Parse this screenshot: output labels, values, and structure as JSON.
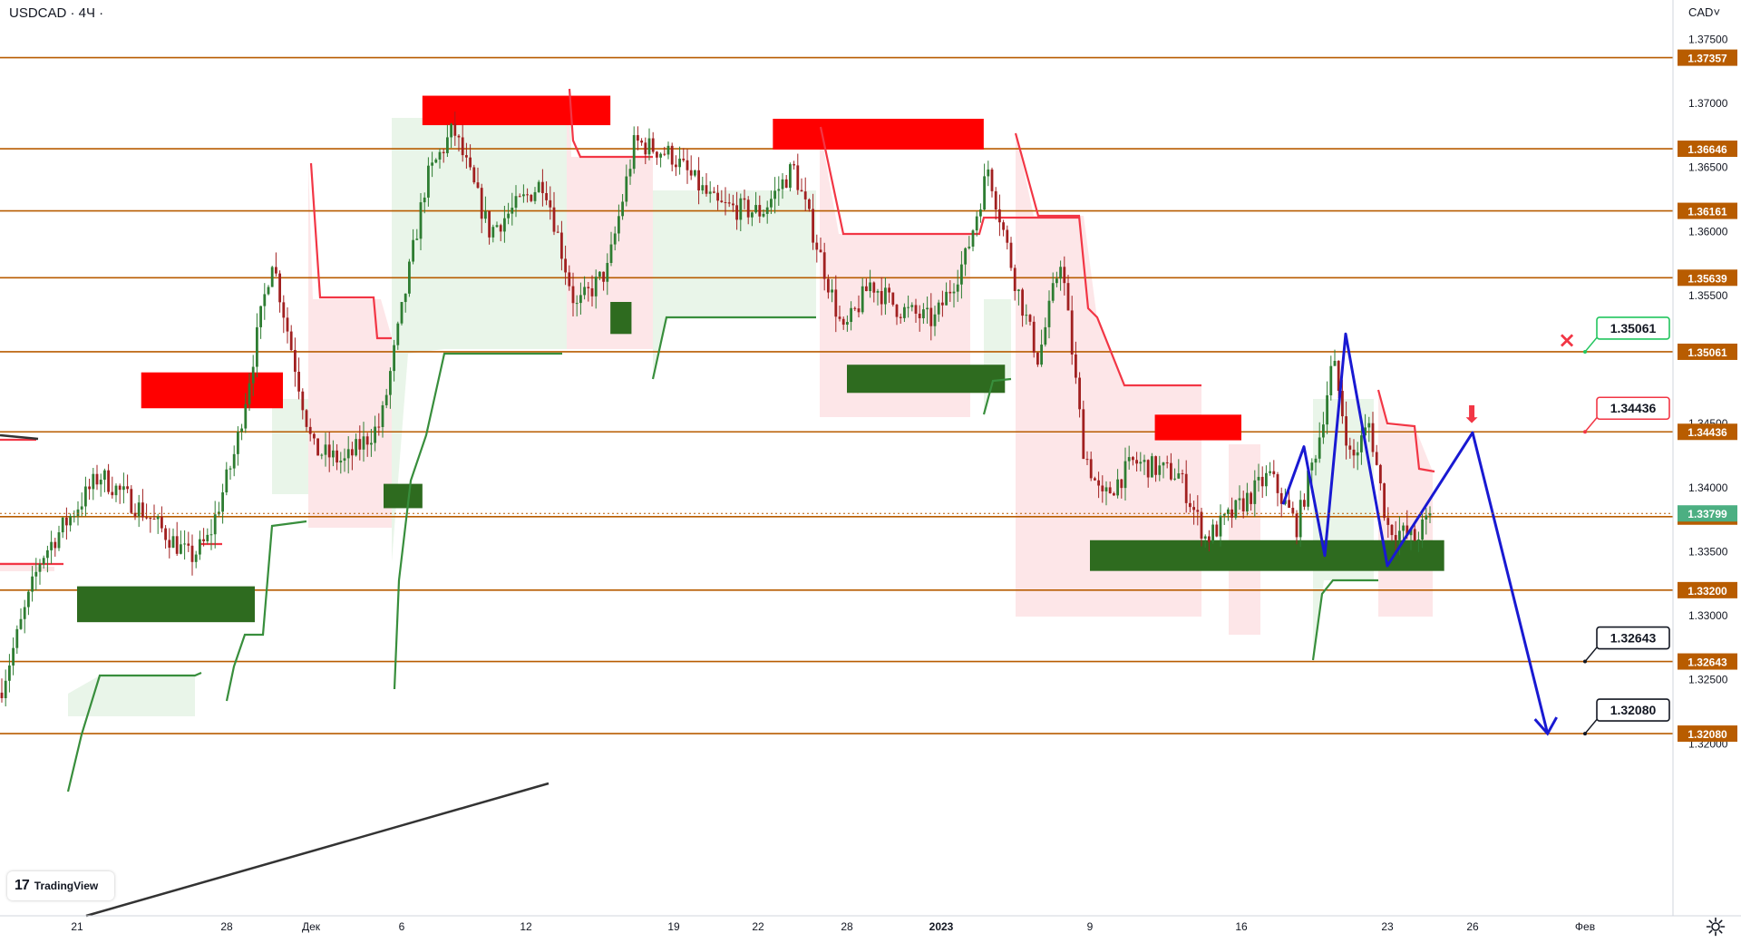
{
  "symbol": {
    "pair": "USDCAD",
    "interval": "4Ч",
    "title": "USDCAD · 4Ч ·"
  },
  "currency_dropdown": "CAD",
  "logo": {
    "mark": "17",
    "text": "TradingView"
  },
  "colors": {
    "level_line": "#b85c00",
    "level_label_bg": "#b85c00",
    "current_label_bg": "#4caf82",
    "resistance_zone": "#ff0000",
    "support_zone": "#2e6b1f",
    "trail_red": "#f23645",
    "trail_green": "#388e3c",
    "fill_red": "rgba(242,54,69,0.12)",
    "fill_green": "rgba(56,142,60,0.10)",
    "candle_up": "#2e7d32",
    "candle_down": "#a12020",
    "projection": "#1919d2",
    "trendline": "#333333",
    "callout_stop": "#22c55e",
    "callout_entry": "#f23645",
    "callout_target": "#131722"
  },
  "chart_data": {
    "type": "candlestick",
    "symbol": "USDCAD",
    "timeframe": "4Ч",
    "ylim": [
      1.3195,
      1.3765
    ],
    "price_ticks": [
      "1.37500",
      "1.37000",
      "1.36500",
      "1.36000",
      "1.35500",
      "1.34500",
      "1.34000",
      "1.33500",
      "1.33000",
      "1.32500",
      "1.32000"
    ],
    "date_ticks": [
      "21",
      "28",
      "Дек",
      "6",
      "12",
      "19",
      "22",
      "28",
      "2023",
      "9",
      "16",
      "23",
      "26",
      "Фев"
    ],
    "levels": [
      "1.37357",
      "1.36646",
      "1.36161",
      "1.35639",
      "1.35061",
      "1.34436",
      "1.33774",
      "1.33200",
      "1.32643",
      "1.32080"
    ],
    "current_price": "1.33799",
    "callouts": [
      {
        "name": "stop",
        "label": "1.35061",
        "marker": "×"
      },
      {
        "name": "entry",
        "label": "1.34436",
        "marker": "⬇"
      },
      {
        "name": "target-1",
        "label": "1.32643"
      },
      {
        "name": "target-2",
        "label": "1.32080"
      }
    ],
    "resistance_zones": [
      {
        "from": "2022-11-24",
        "to": "2022-11-30",
        "low": 1.3462,
        "high": 1.349
      },
      {
        "from": "2022-12-07",
        "to": "2022-12-16",
        "low": 1.3683,
        "high": 1.3706
      },
      {
        "from": "2022-12-23",
        "to": "2023-01-04",
        "low": 1.3664,
        "high": 1.3688
      },
      {
        "from": "2023-01-12",
        "to": "2023-01-16",
        "low": 1.3437,
        "high": 1.3457
      }
    ],
    "support_zones": [
      {
        "from": "2022-11-21",
        "to": "2022-11-29",
        "low": 1.3295,
        "high": 1.3323
      },
      {
        "from": "2022-12-05",
        "to": "2022-12-07",
        "low": 1.3384,
        "high": 1.3403
      },
      {
        "from": "2022-12-16",
        "to": "2022-12-17",
        "low": 1.352,
        "high": 1.3545
      },
      {
        "from": "2022-12-28",
        "to": "2023-01-05",
        "low": 1.3474,
        "high": 1.3496
      },
      {
        "from": "2023-01-09",
        "to": "2023-01-25",
        "low": 1.3335,
        "high": 1.3359
      }
    ],
    "projection_path": [
      {
        "date": "2023-01-18",
        "price": 1.3387
      },
      {
        "date": "2023-01-19",
        "price": 1.3432
      },
      {
        "date": "2023-01-20",
        "price": 1.3347
      },
      {
        "date": "2023-01-21",
        "price": 1.352
      },
      {
        "date": "2023-01-23",
        "price": 1.3339
      },
      {
        "date": "2023-01-26",
        "price": 1.3443
      },
      {
        "date": "2023-01-30",
        "price": 1.3208
      }
    ]
  }
}
